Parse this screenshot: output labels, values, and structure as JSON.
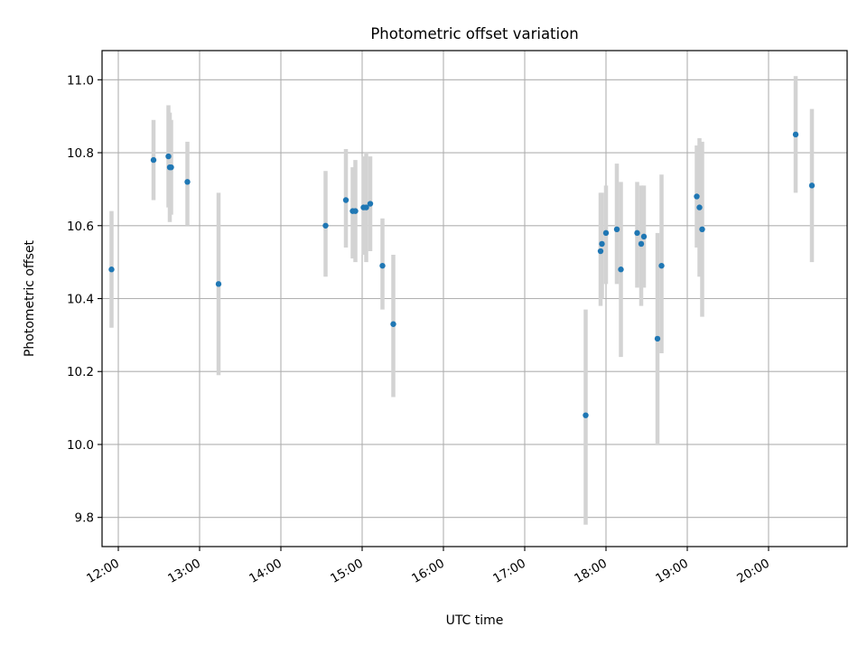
{
  "chart_data": {
    "type": "scatter",
    "title": "Photometric offset variation",
    "xlabel": "UTC time",
    "ylabel": "Photometric offset",
    "xlim": [
      "11:48",
      "20:58"
    ],
    "ylim": [
      9.72,
      11.08
    ],
    "x_ticks": [
      "12:00",
      "13:00",
      "14:00",
      "15:00",
      "16:00",
      "17:00",
      "18:00",
      "19:00",
      "20:00"
    ],
    "y_ticks": [
      9.8,
      10.0,
      10.2,
      10.4,
      10.6,
      10.8,
      11.0
    ],
    "grid": true,
    "legend": null,
    "colors": {
      "marker": "#1f77b4",
      "errorbar": "#d3d3d3",
      "grid": "#b0b0b0"
    },
    "series": [
      {
        "points": [
          {
            "x": "11:55",
            "y": 10.48,
            "yerr_low": 10.32,
            "yerr_high": 10.64
          },
          {
            "x": "12:26",
            "y": 10.78,
            "yerr_low": 10.67,
            "yerr_high": 10.89
          },
          {
            "x": "12:37",
            "y": 10.79,
            "yerr_low": 10.65,
            "yerr_high": 10.93
          },
          {
            "x": "12:38",
            "y": 10.76,
            "yerr_low": 10.61,
            "yerr_high": 10.91
          },
          {
            "x": "12:39",
            "y": 10.76,
            "yerr_low": 10.63,
            "yerr_high": 10.89
          },
          {
            "x": "12:51",
            "y": 10.72,
            "yerr_low": 10.6,
            "yerr_high": 10.83
          },
          {
            "x": "13:14",
            "y": 10.44,
            "yerr_low": 10.19,
            "yerr_high": 10.69
          },
          {
            "x": "14:33",
            "y": 10.6,
            "yerr_low": 10.46,
            "yerr_high": 10.75
          },
          {
            "x": "14:48",
            "y": 10.67,
            "yerr_low": 10.54,
            "yerr_high": 10.81
          },
          {
            "x": "14:53",
            "y": 10.64,
            "yerr_low": 10.51,
            "yerr_high": 10.76
          },
          {
            "x": "14:55",
            "y": 10.64,
            "yerr_low": 10.5,
            "yerr_high": 10.78
          },
          {
            "x": "15:01",
            "y": 10.65,
            "yerr_low": 10.52,
            "yerr_high": 10.79
          },
          {
            "x": "15:03",
            "y": 10.65,
            "yerr_low": 10.5,
            "yerr_high": 10.8
          },
          {
            "x": "15:06",
            "y": 10.66,
            "yerr_low": 10.53,
            "yerr_high": 10.79
          },
          {
            "x": "15:15",
            "y": 10.49,
            "yerr_low": 10.37,
            "yerr_high": 10.62
          },
          {
            "x": "15:23",
            "y": 10.33,
            "yerr_low": 10.13,
            "yerr_high": 10.52
          },
          {
            "x": "17:45",
            "y": 10.08,
            "yerr_low": 9.78,
            "yerr_high": 10.37
          },
          {
            "x": "17:56",
            "y": 10.53,
            "yerr_low": 10.38,
            "yerr_high": 10.69
          },
          {
            "x": "17:57",
            "y": 10.55,
            "yerr_low": 10.4,
            "yerr_high": 10.69
          },
          {
            "x": "18:00",
            "y": 10.58,
            "yerr_low": 10.44,
            "yerr_high": 10.71
          },
          {
            "x": "18:08",
            "y": 10.59,
            "yerr_low": 10.44,
            "yerr_high": 10.77
          },
          {
            "x": "18:11",
            "y": 10.48,
            "yerr_low": 10.24,
            "yerr_high": 10.72
          },
          {
            "x": "18:23",
            "y": 10.58,
            "yerr_low": 10.43,
            "yerr_high": 10.72
          },
          {
            "x": "18:26",
            "y": 10.55,
            "yerr_low": 10.38,
            "yerr_high": 10.71
          },
          {
            "x": "18:28",
            "y": 10.57,
            "yerr_low": 10.43,
            "yerr_high": 10.71
          },
          {
            "x": "18:38",
            "y": 10.29,
            "yerr_low": 10.0,
            "yerr_high": 10.58
          },
          {
            "x": "18:41",
            "y": 10.49,
            "yerr_low": 10.25,
            "yerr_high": 10.74
          },
          {
            "x": "19:07",
            "y": 10.68,
            "yerr_low": 10.54,
            "yerr_high": 10.82
          },
          {
            "x": "19:09",
            "y": 10.65,
            "yerr_low": 10.46,
            "yerr_high": 10.84
          },
          {
            "x": "19:11",
            "y": 10.59,
            "yerr_low": 10.35,
            "yerr_high": 10.83
          },
          {
            "x": "20:20",
            "y": 10.85,
            "yerr_low": 10.69,
            "yerr_high": 11.01
          },
          {
            "x": "20:32",
            "y": 10.71,
            "yerr_low": 10.5,
            "yerr_high": 10.92
          }
        ]
      }
    ]
  }
}
